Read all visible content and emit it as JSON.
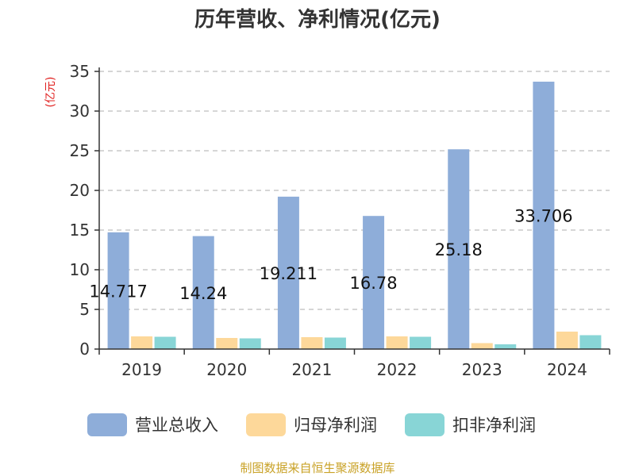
{
  "chart_data": {
    "type": "bar",
    "title": "历年营收、净利情况(亿元)",
    "ylabel": "(亿元)",
    "xlabel": "",
    "categories": [
      "2019",
      "2020",
      "2021",
      "2022",
      "2023",
      "2024"
    ],
    "ylim": [
      0,
      35
    ],
    "yticks": [
      0,
      5,
      10,
      15,
      20,
      25,
      30,
      35
    ],
    "grid": true,
    "legend_position": "bottom",
    "series": [
      {
        "name": "营业总收入",
        "color": "#8eadd9",
        "values": [
          14.717,
          14.24,
          19.211,
          16.78,
          25.18,
          33.706
        ],
        "labels": [
          "14.717",
          "14.24",
          "19.211",
          "16.78",
          "25.18",
          "33.706"
        ]
      },
      {
        "name": "归母净利润",
        "color": "#fdd89a",
        "values": [
          1.6,
          1.4,
          1.5,
          1.6,
          0.75,
          2.2
        ]
      },
      {
        "name": "扣非净利润",
        "color": "#88d5d6",
        "values": [
          1.55,
          1.35,
          1.45,
          1.55,
          0.6,
          1.75
        ]
      }
    ],
    "source": "制图数据来自恒生聚源数据库"
  }
}
